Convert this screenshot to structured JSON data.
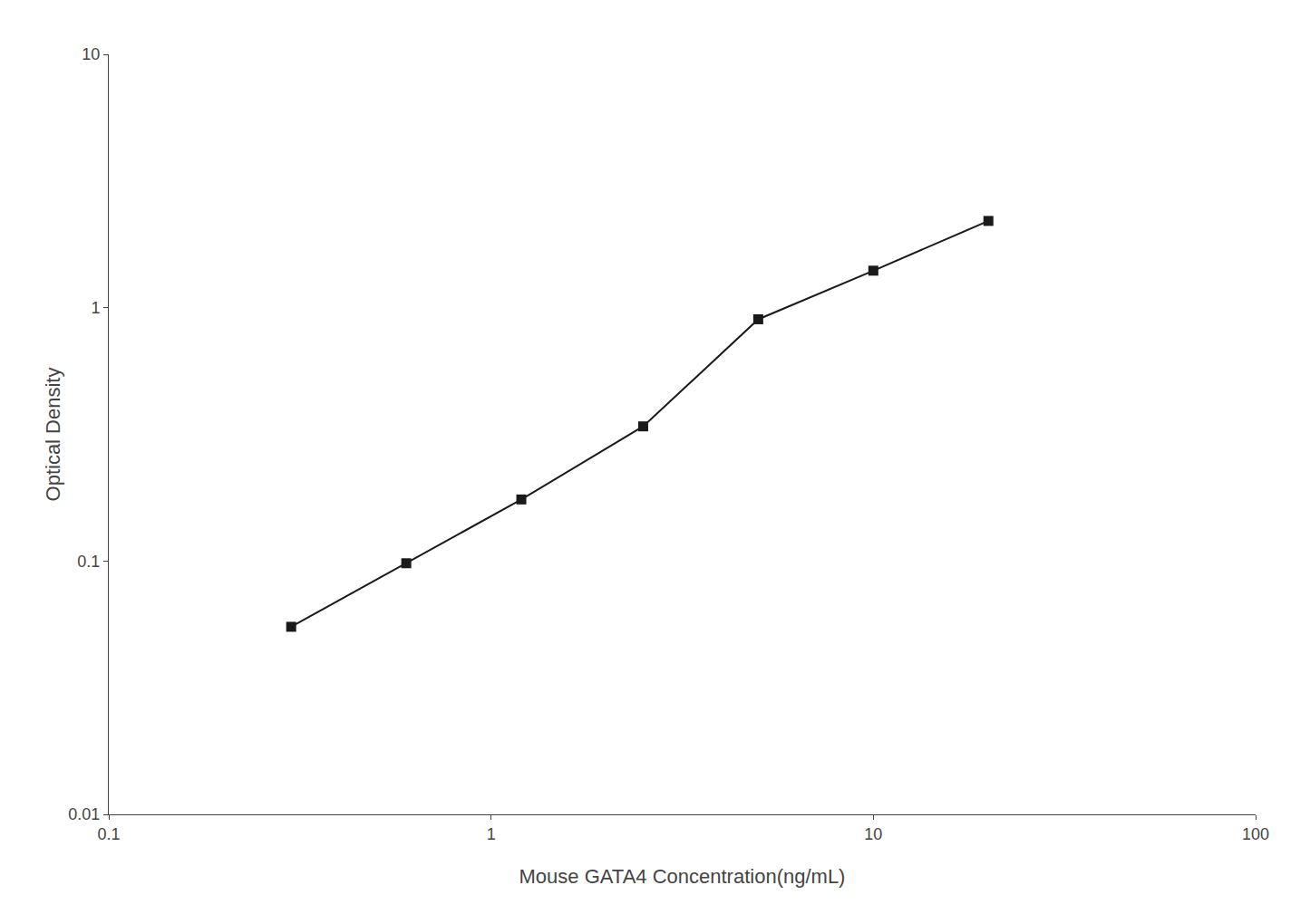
{
  "chart_data": {
    "type": "line",
    "x": [
      0.3,
      0.6,
      1.2,
      2.5,
      5.0,
      10.0,
      20.0
    ],
    "values": [
      0.055,
      0.098,
      0.175,
      0.34,
      0.9,
      1.4,
      2.2
    ],
    "xlabel": "Mouse GATA4 Concentration(ng/mL)",
    "ylabel": "Optical Density",
    "xlim": [
      0.1,
      100
    ],
    "ylim": [
      0.01,
      10
    ],
    "xticks": [
      0.1,
      1,
      10,
      100
    ],
    "yticks": [
      0.01,
      0.1,
      1,
      10
    ],
    "log": true,
    "grid": false,
    "color": "#1a1a1a",
    "marker": "square",
    "line_style": "solid"
  }
}
